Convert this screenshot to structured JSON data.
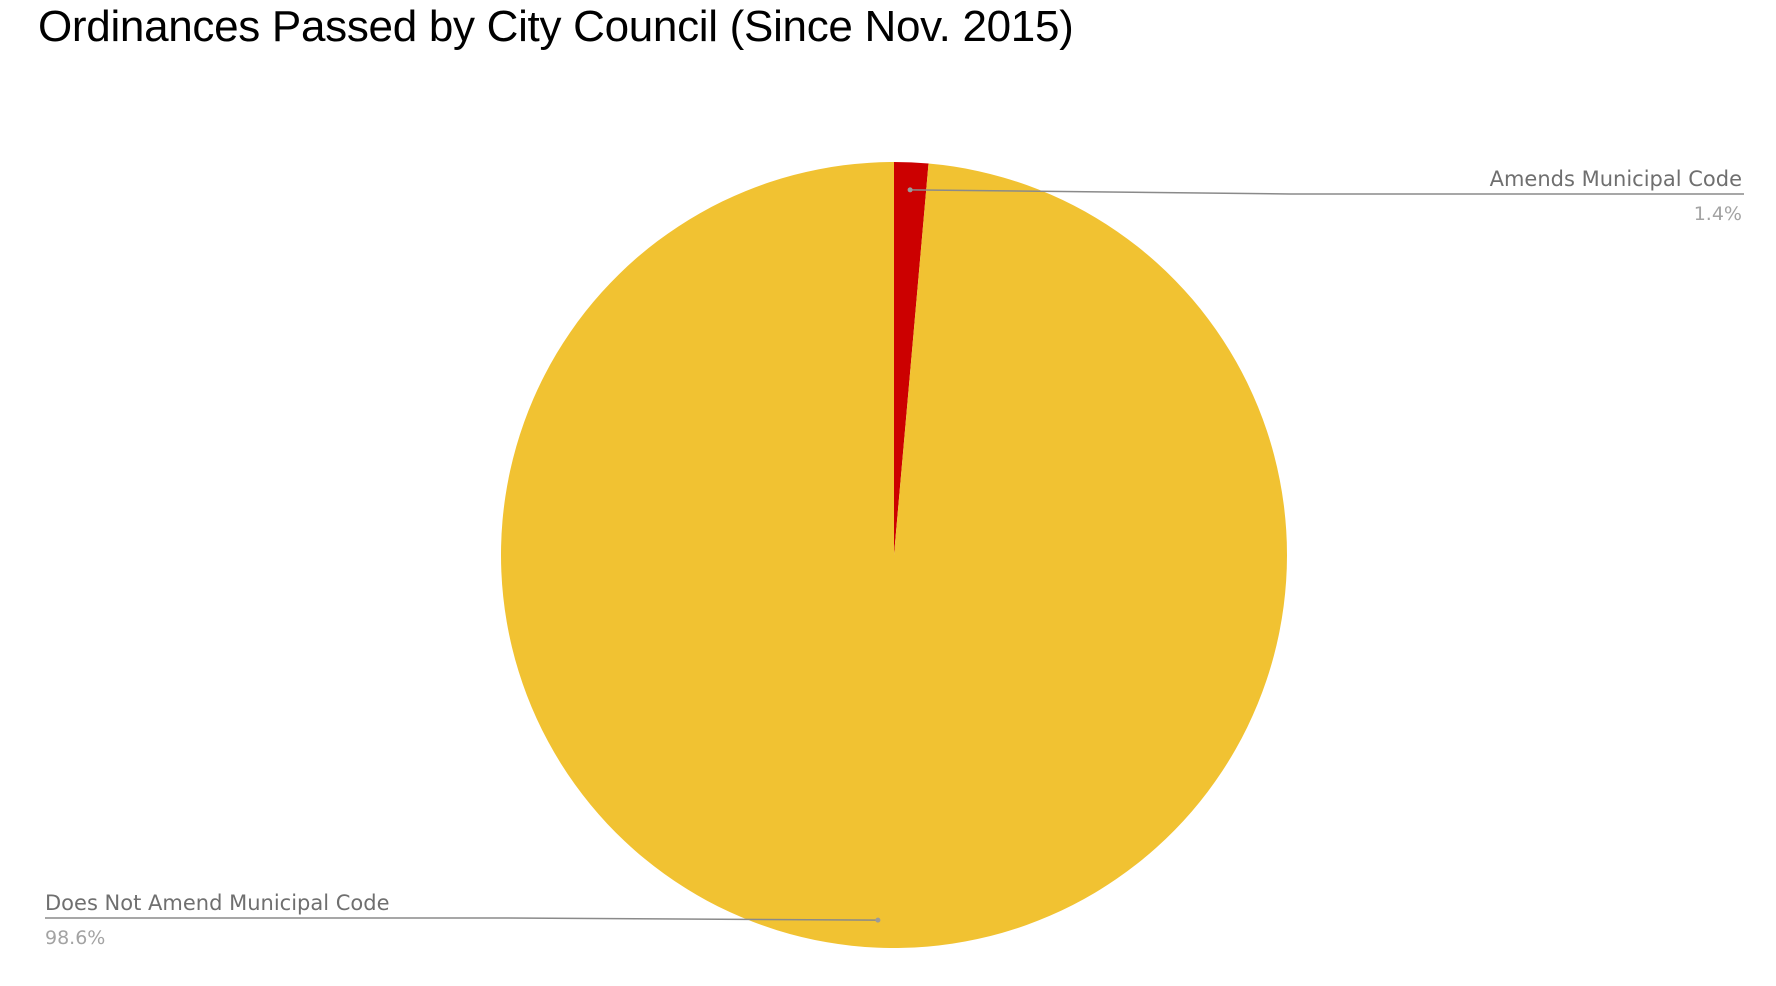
{
  "chart_data": {
    "type": "pie",
    "title": "Ordinances Passed by City Council (Since Nov. 2015)",
    "slices": [
      {
        "name": "Amends Municipal Code",
        "value": 1.4,
        "label": "1.4%",
        "color": "#cc0000"
      },
      {
        "name": "Does Not Amend Municipal Code",
        "value": 98.6,
        "label": "98.6%",
        "color": "#f1c232"
      }
    ],
    "start_angle": "12 o'clock",
    "direction": "clockwise",
    "labels_style": "outside-with-leader-lines",
    "legend": "none"
  }
}
